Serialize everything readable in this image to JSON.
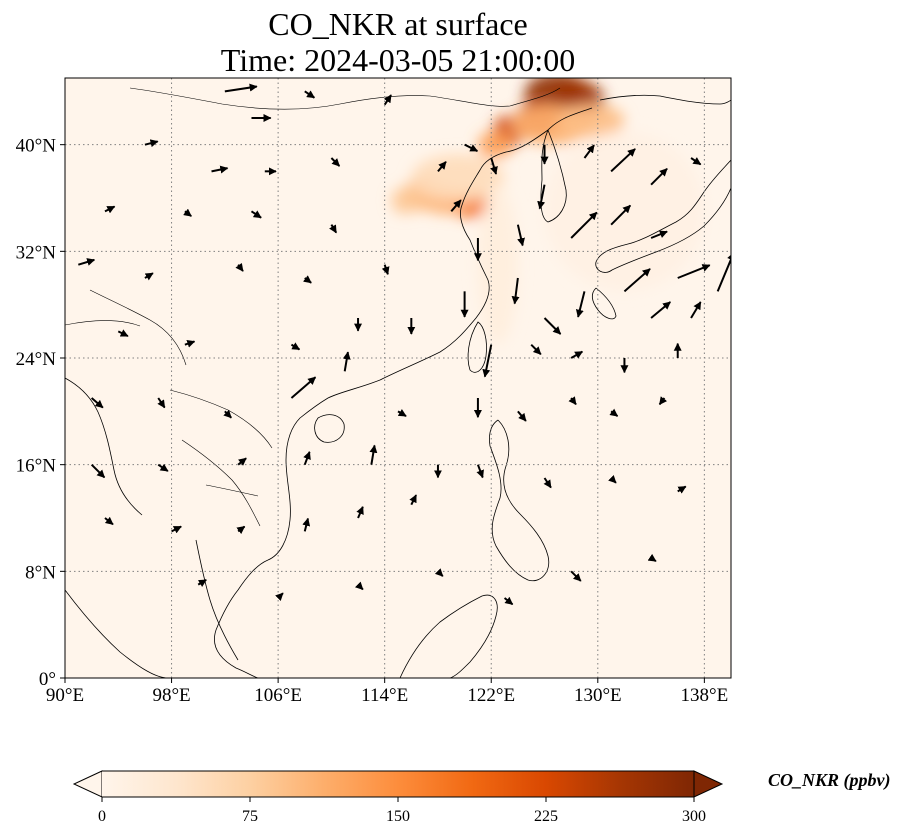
{
  "title_line1": "CO_NKR at surface",
  "title_line2": "Time: 2024-03-05 21:00:00",
  "map": {
    "extent": {
      "lon_min": 90,
      "lon_max": 140,
      "lat_min": 0,
      "lat_max": 45
    },
    "lon_ticks": [
      {
        "value": 90,
        "label": "90°E"
      },
      {
        "value": 98,
        "label": "98°E"
      },
      {
        "value": 106,
        "label": "106°E"
      },
      {
        "value": 114,
        "label": "114°E"
      },
      {
        "value": 122,
        "label": "122°E"
      },
      {
        "value": 130,
        "label": "130°E"
      },
      {
        "value": 138,
        "label": "138°E"
      }
    ],
    "lat_ticks": [
      {
        "value": 0,
        "label": "0°"
      },
      {
        "value": 8,
        "label": "8°N"
      },
      {
        "value": 16,
        "label": "16°N"
      },
      {
        "value": 24,
        "label": "24°N"
      },
      {
        "value": 32,
        "label": "32°N"
      },
      {
        "value": 40,
        "label": "40°N"
      }
    ],
    "background_color": "#fff5eb",
    "gridlines": "dotted"
  },
  "colorbar": {
    "label": "CO_NKR (ppbv)",
    "min": 0,
    "max": 300,
    "ticks": [
      {
        "value": 0,
        "label": "0"
      },
      {
        "value": 75,
        "label": "75"
      },
      {
        "value": 150,
        "label": "150"
      },
      {
        "value": 225,
        "label": "225"
      },
      {
        "value": 300,
        "label": "300"
      }
    ],
    "colormap": [
      "#fff5eb",
      "#fee6ce",
      "#fdd0a2",
      "#fdae6b",
      "#fd8d3c",
      "#f16913",
      "#d94801",
      "#a63603",
      "#7f2704"
    ],
    "extend": "both"
  },
  "plumes": [
    {
      "lon": 127.0,
      "lat": 43.8,
      "rx": 2.5,
      "ry": 1.6,
      "value": 285
    },
    {
      "lon": 128.5,
      "lat": 43.3,
      "rx": 2.0,
      "ry": 1.5,
      "value": 270
    },
    {
      "lon": 125.5,
      "lat": 42.0,
      "rx": 1.6,
      "ry": 1.4,
      "value": 240
    },
    {
      "lon": 123.3,
      "lat": 41.0,
      "rx": 1.2,
      "ry": 1.2,
      "value": 230
    },
    {
      "lon": 122.3,
      "lat": 40.0,
      "rx": 1.3,
      "ry": 1.0,
      "value": 130
    },
    {
      "lon": 126.5,
      "lat": 41.5,
      "rx": 3.0,
      "ry": 1.5,
      "value": 110
    },
    {
      "lon": 129.5,
      "lat": 41.8,
      "rx": 2.5,
      "ry": 1.3,
      "value": 95
    },
    {
      "lon": 120.5,
      "lat": 35.5,
      "rx": 1.6,
      "ry": 1.0,
      "value": 175
    },
    {
      "lon": 118.5,
      "lat": 35.8,
      "rx": 1.6,
      "ry": 1.0,
      "value": 115
    },
    {
      "lon": 116.8,
      "lat": 36.3,
      "rx": 1.3,
      "ry": 1.3,
      "value": 100
    },
    {
      "lon": 115.5,
      "lat": 35.8,
      "rx": 1.0,
      "ry": 1.0,
      "value": 85
    },
    {
      "lon": 119.5,
      "lat": 37.5,
      "rx": 3.5,
      "ry": 1.8,
      "value": 55
    },
    {
      "lon": 122.5,
      "lat": 31.0,
      "rx": 1.5,
      "ry": 6.0,
      "value": 18
    },
    {
      "lon": 132.0,
      "lat": 35.0,
      "rx": 6.0,
      "ry": 6.0,
      "value": 10
    }
  ],
  "wind_vectors": [
    {
      "lon": 102,
      "lat": 44,
      "u": 2.0,
      "v": 0.3
    },
    {
      "lon": 104,
      "lat": 42,
      "u": 1.2,
      "v": 0.0
    },
    {
      "lon": 108,
      "lat": 44,
      "u": 0.6,
      "v": -0.4
    },
    {
      "lon": 96,
      "lat": 40,
      "u": 0.8,
      "v": 0.2
    },
    {
      "lon": 101,
      "lat": 38,
      "u": 1.0,
      "v": 0.2
    },
    {
      "lon": 105,
      "lat": 38,
      "u": 0.7,
      "v": 0.0
    },
    {
      "lon": 110,
      "lat": 39,
      "u": 0.5,
      "v": -0.5
    },
    {
      "lon": 114,
      "lat": 43,
      "u": 0.4,
      "v": 0.6
    },
    {
      "lon": 93,
      "lat": 35,
      "u": 0.6,
      "v": 0.3
    },
    {
      "lon": 99,
      "lat": 35,
      "u": 0.4,
      "v": -0.3
    },
    {
      "lon": 104,
      "lat": 35,
      "u": 0.6,
      "v": -0.4
    },
    {
      "lon": 110,
      "lat": 34,
      "u": 0.3,
      "v": -0.5
    },
    {
      "lon": 91,
      "lat": 31,
      "u": 1.0,
      "v": 0.3
    },
    {
      "lon": 96,
      "lat": 30,
      "u": 0.5,
      "v": 0.3
    },
    {
      "lon": 103,
      "lat": 31,
      "u": 0.3,
      "v": -0.4
    },
    {
      "lon": 108,
      "lat": 30,
      "u": 0.4,
      "v": -0.3
    },
    {
      "lon": 114,
      "lat": 31,
      "u": 0.2,
      "v": -0.6
    },
    {
      "lon": 94,
      "lat": 26,
      "u": 0.6,
      "v": -0.3
    },
    {
      "lon": 99,
      "lat": 25,
      "u": 0.6,
      "v": 0.2
    },
    {
      "lon": 107,
      "lat": 25,
      "u": 0.5,
      "v": -0.3
    },
    {
      "lon": 112,
      "lat": 27,
      "u": 0.0,
      "v": -0.8
    },
    {
      "lon": 116,
      "lat": 27,
      "u": 0.0,
      "v": -1.0
    },
    {
      "lon": 92,
      "lat": 21,
      "u": 0.7,
      "v": -0.6
    },
    {
      "lon": 97,
      "lat": 21,
      "u": 0.4,
      "v": -0.6
    },
    {
      "lon": 102,
      "lat": 20,
      "u": 0.4,
      "v": -0.4
    },
    {
      "lon": 107,
      "lat": 21,
      "u": 1.5,
      "v": 1.3
    },
    {
      "lon": 111,
      "lat": 23,
      "u": 0.2,
      "v": 1.2
    },
    {
      "lon": 115,
      "lat": 20,
      "u": 0.5,
      "v": -0.3
    },
    {
      "lon": 92,
      "lat": 16,
      "u": 0.8,
      "v": -0.8
    },
    {
      "lon": 97,
      "lat": 16,
      "u": 0.6,
      "v": -0.4
    },
    {
      "lon": 103,
      "lat": 16,
      "u": 0.5,
      "v": 0.4
    },
    {
      "lon": 108,
      "lat": 16,
      "u": 0.3,
      "v": 0.8
    },
    {
      "lon": 113,
      "lat": 16,
      "u": 0.2,
      "v": 1.2
    },
    {
      "lon": 118,
      "lat": 16,
      "u": 0.0,
      "v": -0.8
    },
    {
      "lon": 93,
      "lat": 12,
      "u": 0.5,
      "v": -0.4
    },
    {
      "lon": 98,
      "lat": 11,
      "u": 0.6,
      "v": 0.3
    },
    {
      "lon": 103,
      "lat": 11,
      "u": 0.4,
      "v": 0.3
    },
    {
      "lon": 108,
      "lat": 11,
      "u": 0.2,
      "v": 0.8
    },
    {
      "lon": 112,
      "lat": 12,
      "u": 0.3,
      "v": 0.7
    },
    {
      "lon": 116,
      "lat": 13,
      "u": 0.3,
      "v": 0.6
    },
    {
      "lon": 100,
      "lat": 7,
      "u": 0.5,
      "v": 0.3
    },
    {
      "lon": 106,
      "lat": 6,
      "u": 0.3,
      "v": 0.3
    },
    {
      "lon": 112,
      "lat": 7,
      "u": 0.3,
      "v": -0.3
    },
    {
      "lon": 118,
      "lat": 8,
      "u": 0.3,
      "v": -0.3
    },
    {
      "lon": 123,
      "lat": 6,
      "u": 0.5,
      "v": -0.4
    },
    {
      "lon": 118,
      "lat": 38,
      "u": 0.5,
      "v": 0.6
    },
    {
      "lon": 120,
      "lat": 40,
      "u": 0.8,
      "v": -0.4
    },
    {
      "lon": 122,
      "lat": 39,
      "u": 0.3,
      "v": -1.0
    },
    {
      "lon": 126,
      "lat": 40,
      "u": 0.0,
      "v": -1.2
    },
    {
      "lon": 129,
      "lat": 39,
      "u": 0.6,
      "v": 0.8
    },
    {
      "lon": 131,
      "lat": 38,
      "u": 1.5,
      "v": 1.4
    },
    {
      "lon": 134,
      "lat": 37,
      "u": 1.0,
      "v": 1.0
    },
    {
      "lon": 137,
      "lat": 39,
      "u": 0.6,
      "v": -0.4
    },
    {
      "lon": 119,
      "lat": 35,
      "u": 0.6,
      "v": 0.7
    },
    {
      "lon": 121,
      "lat": 33,
      "u": 0.0,
      "v": -1.4
    },
    {
      "lon": 124,
      "lat": 34,
      "u": 0.3,
      "v": -1.3
    },
    {
      "lon": 126,
      "lat": 37,
      "u": -0.3,
      "v": -1.5
    },
    {
      "lon": 128,
      "lat": 33,
      "u": 1.6,
      "v": 1.6
    },
    {
      "lon": 131,
      "lat": 34,
      "u": 1.2,
      "v": 1.2
    },
    {
      "lon": 134,
      "lat": 33,
      "u": 1.0,
      "v": 0.4
    },
    {
      "lon": 136,
      "lat": 30,
      "u": 2.0,
      "v": 0.8
    },
    {
      "lon": 139,
      "lat": 29,
      "u": 1.0,
      "v": 2.4
    },
    {
      "lon": 120,
      "lat": 29,
      "u": 0.0,
      "v": -1.6
    },
    {
      "lon": 124,
      "lat": 30,
      "u": -0.2,
      "v": -1.6
    },
    {
      "lon": 126,
      "lat": 27,
      "u": 1.0,
      "v": -1.0
    },
    {
      "lon": 129,
      "lat": 29,
      "u": -0.4,
      "v": -1.6
    },
    {
      "lon": 132,
      "lat": 29,
      "u": 1.6,
      "v": 1.4
    },
    {
      "lon": 134,
      "lat": 27,
      "u": 1.2,
      "v": 1.0
    },
    {
      "lon": 137,
      "lat": 27,
      "u": 0.6,
      "v": 1.0
    },
    {
      "lon": 122,
      "lat": 25,
      "u": -0.4,
      "v": -2.0
    },
    {
      "lon": 125,
      "lat": 25,
      "u": 0.6,
      "v": -0.6
    },
    {
      "lon": 128,
      "lat": 24,
      "u": 0.7,
      "v": 0.4
    },
    {
      "lon": 132,
      "lat": 24,
      "u": 0.0,
      "v": -0.9
    },
    {
      "lon": 136,
      "lat": 24,
      "u": 0.0,
      "v": 0.9
    },
    {
      "lon": 121,
      "lat": 21,
      "u": 0.0,
      "v": -1.2
    },
    {
      "lon": 124,
      "lat": 20,
      "u": 0.5,
      "v": -0.6
    },
    {
      "lon": 128,
      "lat": 21,
      "u": 0.3,
      "v": -0.4
    },
    {
      "lon": 131,
      "lat": 20,
      "u": 0.4,
      "v": -0.3
    },
    {
      "lon": 135,
      "lat": 21,
      "u": -0.3,
      "v": -0.4
    },
    {
      "lon": 121,
      "lat": 16,
      "u": 0.3,
      "v": -0.8
    },
    {
      "lon": 126,
      "lat": 15,
      "u": 0.4,
      "v": -0.6
    },
    {
      "lon": 131,
      "lat": 15,
      "u": 0.3,
      "v": -0.3
    },
    {
      "lon": 136,
      "lat": 14,
      "u": 0.5,
      "v": 0.3
    },
    {
      "lon": 128,
      "lat": 8,
      "u": 0.6,
      "v": -0.6
    },
    {
      "lon": 134,
      "lat": 9,
      "u": 0.3,
      "v": -0.2
    }
  ]
}
